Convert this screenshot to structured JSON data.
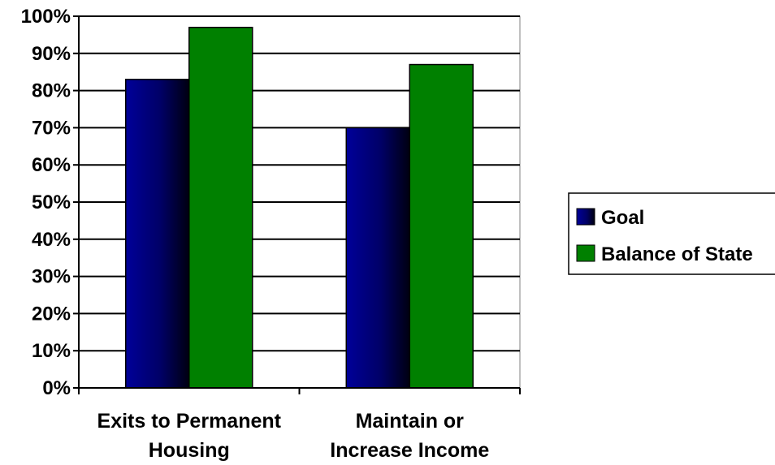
{
  "chart_data": {
    "type": "bar",
    "title": "",
    "xlabel": "",
    "ylabel": "",
    "categories": [
      [
        "Exits to Permanent",
        "Housing"
      ],
      [
        "Maintain or",
        "Increase Income"
      ]
    ],
    "series": [
      {
        "name": "Goal",
        "values": [
          83,
          70
        ],
        "color": "#000080"
      },
      {
        "name": "Balance of State",
        "values": [
          97,
          87
        ],
        "color": "#008000"
      }
    ],
    "ylim": [
      0,
      100
    ],
    "yticks": [
      0,
      10,
      20,
      30,
      40,
      50,
      60,
      70,
      80,
      90,
      100
    ],
    "ytick_format": "%",
    "grid": true,
    "legend_position": "right"
  }
}
